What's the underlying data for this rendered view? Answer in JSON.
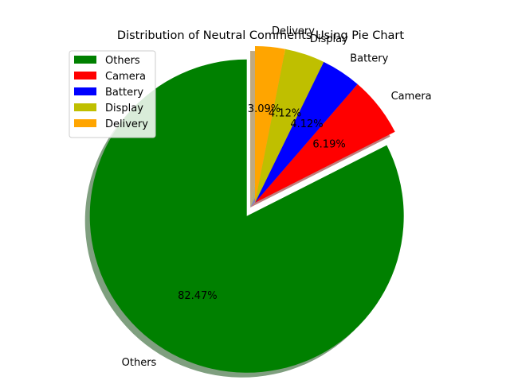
{
  "chart_data": {
    "type": "pie",
    "title": "Distribution of Neutral Comments Using Pie Chart",
    "categories": [
      "Others",
      "Camera",
      "Battery",
      "Display",
      "Delivery"
    ],
    "values": [
      82.47,
      6.19,
      4.12,
      4.12,
      3.09
    ],
    "pct_labels": [
      "82.47%",
      "6.19%",
      "4.12%",
      "4.12%",
      "3.09%"
    ],
    "colors": [
      "#008000",
      "#ff0000",
      "#0000ff",
      "#bfbf00",
      "#ffa500"
    ],
    "exploded": [
      "Others"
    ],
    "shadow": true,
    "start_angle_deg": 90,
    "direction": "counterclockwise",
    "legend": {
      "placement": "upper-left",
      "entries": [
        "Others",
        "Camera",
        "Battery",
        "Display",
        "Delivery"
      ]
    }
  }
}
